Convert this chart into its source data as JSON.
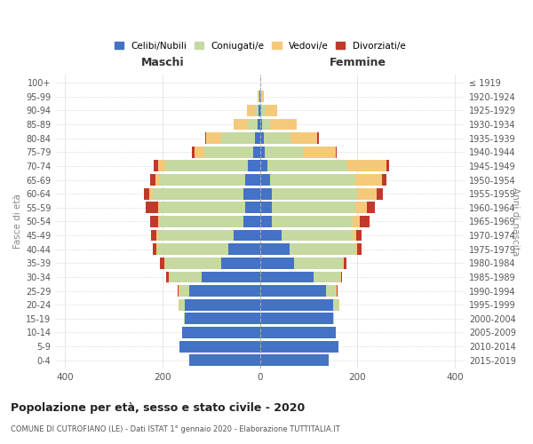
{
  "age_groups": [
    "0-4",
    "5-9",
    "10-14",
    "15-19",
    "20-24",
    "25-29",
    "30-34",
    "35-39",
    "40-44",
    "45-49",
    "50-54",
    "55-59",
    "60-64",
    "65-69",
    "70-74",
    "75-79",
    "80-84",
    "85-89",
    "90-94",
    "95-99",
    "100+"
  ],
  "birth_years": [
    "2015-2019",
    "2010-2014",
    "2005-2009",
    "2000-2004",
    "1995-1999",
    "1990-1994",
    "1985-1989",
    "1980-1984",
    "1975-1979",
    "1970-1974",
    "1965-1969",
    "1960-1964",
    "1955-1959",
    "1950-1954",
    "1945-1949",
    "1940-1944",
    "1935-1939",
    "1930-1934",
    "1925-1929",
    "1920-1924",
    "≤ 1919"
  ],
  "colors": {
    "celibe": "#4472C4",
    "coniugato": "#C5D9A0",
    "vedovo": "#F5C97A",
    "divorziato": "#C0392B"
  },
  "maschi": {
    "celibe": [
      145,
      165,
      160,
      155,
      155,
      145,
      120,
      80,
      65,
      55,
      35,
      30,
      35,
      30,
      25,
      15,
      10,
      5,
      3,
      1,
      0
    ],
    "coniugato": [
      0,
      0,
      0,
      2,
      10,
      20,
      65,
      115,
      145,
      155,
      170,
      175,
      185,
      175,
      170,
      100,
      70,
      20,
      8,
      2,
      0
    ],
    "vedovo": [
      0,
      0,
      0,
      0,
      2,
      2,
      2,
      2,
      2,
      2,
      5,
      5,
      8,
      10,
      15,
      20,
      30,
      30,
      15,
      2,
      0
    ],
    "divorziato": [
      0,
      0,
      0,
      0,
      0,
      2,
      5,
      8,
      8,
      12,
      15,
      25,
      10,
      10,
      8,
      5,
      2,
      0,
      0,
      0,
      0
    ]
  },
  "femmine": {
    "celibe": [
      140,
      160,
      155,
      150,
      150,
      135,
      110,
      70,
      60,
      45,
      25,
      25,
      25,
      20,
      15,
      10,
      8,
      5,
      3,
      1,
      0
    ],
    "coniugato": [
      0,
      0,
      0,
      2,
      10,
      20,
      55,
      100,
      135,
      145,
      165,
      170,
      175,
      175,
      165,
      80,
      55,
      15,
      8,
      2,
      0
    ],
    "vedovo": [
      0,
      0,
      0,
      0,
      2,
      2,
      2,
      2,
      5,
      8,
      15,
      25,
      40,
      55,
      80,
      65,
      55,
      55,
      25,
      5,
      0
    ],
    "divorziato": [
      0,
      0,
      0,
      0,
      0,
      2,
      2,
      5,
      8,
      10,
      20,
      15,
      12,
      10,
      5,
      2,
      2,
      0,
      0,
      0,
      0
    ]
  },
  "title": "Popolazione per età, sesso e stato civile - 2020",
  "subtitle": "COMUNE DI CUTROFIANO (LE) - Dati ISTAT 1° gennaio 2020 - Elaborazione TUTTITALIA.IT",
  "xlabel_left": "Maschi",
  "xlabel_right": "Femmine",
  "ylabel_left": "Fasce di età",
  "ylabel_right": "Anni di nascita",
  "xlim": 420,
  "legend_labels": [
    "Celibi/Nubili",
    "Coniugati/e",
    "Vedovi/e",
    "Divorziati/e"
  ]
}
